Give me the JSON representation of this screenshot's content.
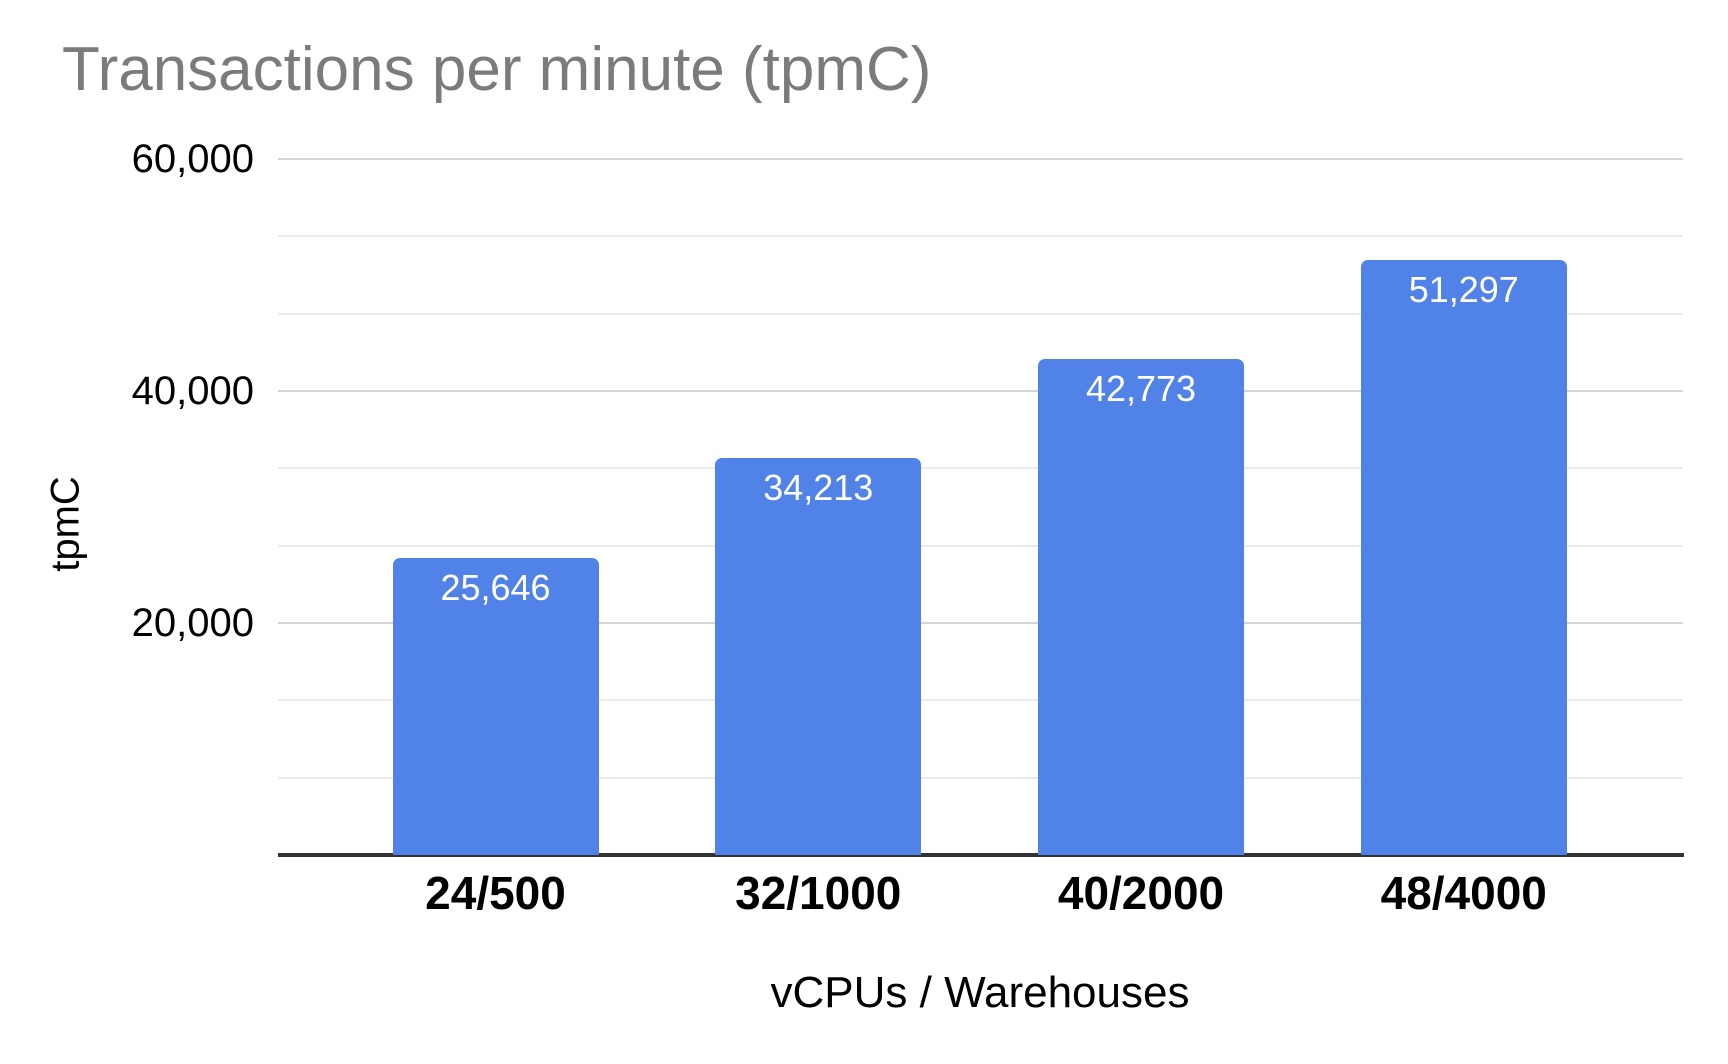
{
  "chart_data": {
    "type": "bar",
    "title": "Transactions per minute (tpmC)",
    "xlabel": "vCPUs / Warehouses",
    "ylabel": "tpmC",
    "categories": [
      "24/500",
      "32/1000",
      "40/2000",
      "48/4000"
    ],
    "values": [
      25646,
      34213,
      42773,
      51297
    ],
    "value_labels": [
      "25,646",
      "34,213",
      "42,773",
      "51,297"
    ],
    "ylim": [
      0,
      60000
    ],
    "yticks": [
      {
        "value": 20000,
        "label": "20,000"
      },
      {
        "value": 40000,
        "label": "40,000"
      },
      {
        "value": 60000,
        "label": "60,000"
      }
    ],
    "minor_gridlines_between_major": 2,
    "grid": true,
    "legend_position": "none",
    "colors": {
      "bar": "#5082E8",
      "value_label": "#FFFFFF",
      "title": "#7B7B7B",
      "axis_line": "#333333",
      "grid_major": "#D5D5D5",
      "grid_minor": "#EBEBEB",
      "tick_label": "#000000"
    }
  }
}
